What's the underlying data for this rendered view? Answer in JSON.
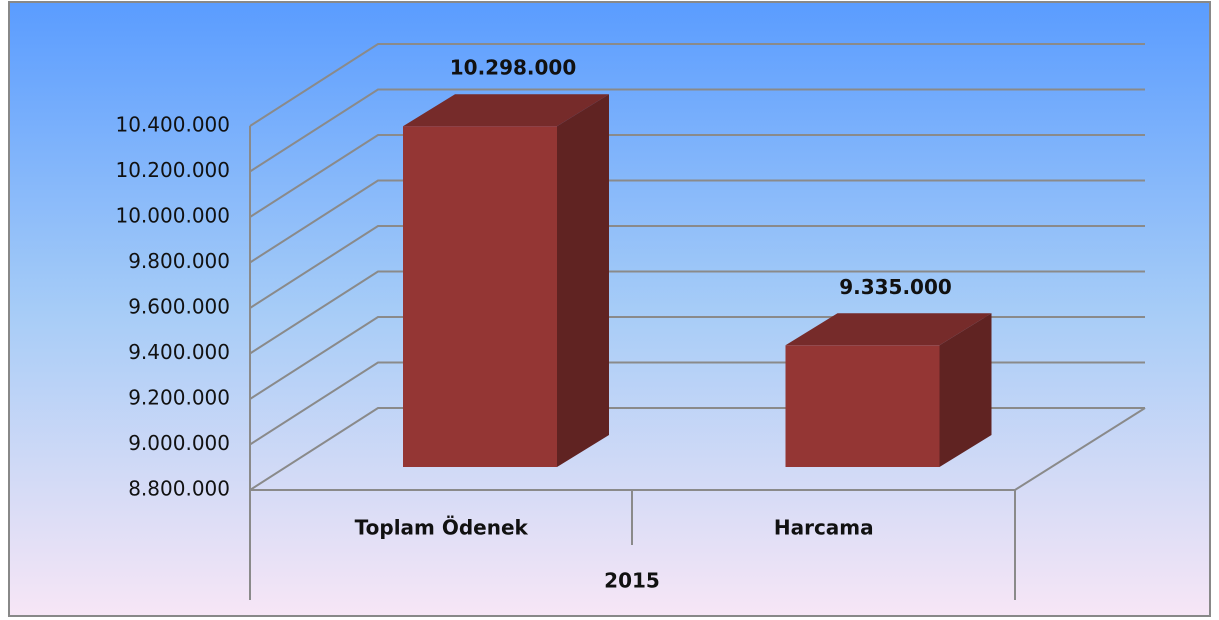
{
  "chart_data": {
    "type": "bar3d",
    "categories": [
      "Toplam Ödenek",
      "Harcama"
    ],
    "group_label": "2015",
    "values": [
      10298000,
      9335000
    ],
    "value_labels": [
      "10.298.000",
      "9.335.000"
    ],
    "color": "#943634",
    "ylim": [
      8800000,
      10400000
    ],
    "yticks": [
      {
        "value": 8800000,
        "label": "8.800.000"
      },
      {
        "value": 9000000,
        "label": "9.000.000"
      },
      {
        "value": 9200000,
        "label": "9.200.000"
      },
      {
        "value": 9400000,
        "label": "9.400.000"
      },
      {
        "value": 9600000,
        "label": "9.600.000"
      },
      {
        "value": 9800000,
        "label": "9.800.000"
      },
      {
        "value": 10000000,
        "label": "10.000.000"
      },
      {
        "value": 10200000,
        "label": "10.200.000"
      },
      {
        "value": 10400000,
        "label": "10.400.000"
      }
    ],
    "grid": true
  }
}
